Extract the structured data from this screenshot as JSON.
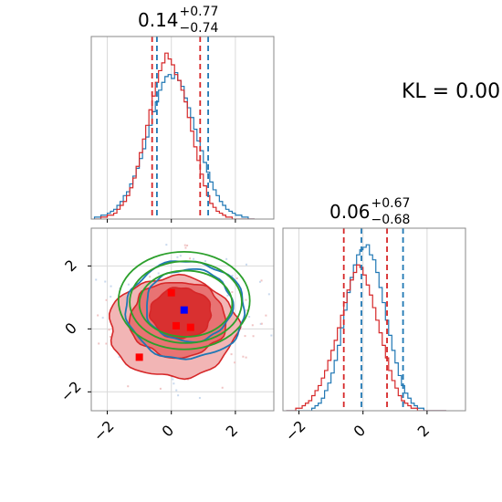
{
  "chart_data": [
    {
      "type": "step-histogram",
      "panel": "x-marginal",
      "title_main": "0.14",
      "title_sup": "+0.77",
      "title_sub": "−0.74",
      "xlim": [
        -2.5,
        3.2
      ],
      "ticks": [
        -2,
        0,
        2
      ],
      "grid": true,
      "bins": {
        "start": -2.4,
        "step": 0.1,
        "count": 50
      },
      "series": [
        {
          "color": "#1f77b4",
          "counts": [
            1,
            1,
            2,
            2,
            3,
            4,
            5,
            7,
            9,
            12,
            14,
            18,
            22,
            26,
            31,
            36,
            42,
            48,
            55,
            60,
            66,
            70,
            73,
            74,
            72,
            75,
            71,
            68,
            62,
            57,
            52,
            46,
            40,
            35,
            29,
            24,
            19,
            15,
            12,
            9,
            7,
            5,
            4,
            3,
            2,
            2,
            1,
            1,
            0,
            0
          ],
          "quantile_lines": [
            -0.45,
            1.15
          ]
        },
        {
          "color": "#d62728",
          "counts": [
            0,
            0,
            1,
            1,
            2,
            2,
            3,
            5,
            7,
            9,
            12,
            16,
            21,
            27,
            34,
            41,
            48,
            56,
            63,
            70,
            76,
            80,
            85,
            82,
            79,
            74,
            71,
            66,
            60,
            52,
            45,
            37,
            30,
            23,
            17,
            12,
            8,
            6,
            4,
            3,
            2,
            1,
            1,
            0,
            0,
            0,
            0,
            0,
            0,
            0
          ],
          "quantile_lines": [
            -0.6,
            0.9
          ]
        }
      ]
    },
    {
      "type": "step-histogram",
      "panel": "y-marginal",
      "title_main": "0.06",
      "title_sup": "+0.67",
      "title_sub": "−0.68",
      "xlim": [
        -2.5,
        3.2
      ],
      "ticks": [
        -2,
        0,
        2
      ],
      "grid": true,
      "bins": {
        "start": -2.4,
        "step": 0.1,
        "count": 50
      },
      "series": [
        {
          "color": "#1f77b4",
          "counts": [
            0,
            0,
            0,
            0,
            0,
            0,
            0,
            0,
            1,
            2,
            3,
            5,
            8,
            11,
            15,
            20,
            26,
            33,
            40,
            47,
            53,
            58,
            62,
            64,
            65,
            66,
            62,
            60,
            55,
            49,
            43,
            36,
            30,
            24,
            19,
            14,
            10,
            7,
            5,
            3,
            2,
            1,
            1,
            0,
            0,
            0,
            0,
            0,
            0,
            0
          ],
          "quantile_lines": [
            -0.05,
            1.25
          ]
        },
        {
          "color": "#d62728",
          "counts": [
            0,
            0,
            0,
            1,
            1,
            2,
            3,
            4,
            6,
            8,
            10,
            13,
            16,
            20,
            24,
            28,
            33,
            38,
            43,
            48,
            52,
            55,
            58,
            57,
            54,
            50,
            46,
            41,
            36,
            31,
            26,
            21,
            16,
            12,
            9,
            6,
            4,
            3,
            2,
            1,
            1,
            0,
            0,
            0,
            0,
            0,
            0,
            0,
            0,
            0
          ],
          "quantile_lines": [
            -0.6,
            0.75
          ]
        }
      ]
    },
    {
      "type": "contour",
      "panel": "joint",
      "xlim": [
        -2.5,
        3.2
      ],
      "ylim": [
        -2.6,
        3.2
      ],
      "xticks": [
        -2,
        0,
        2
      ],
      "yticks": [
        -2,
        0,
        2
      ],
      "grid": true,
      "filled_contours": [
        {
          "color": "#d62728",
          "fill": "#f2b5b5",
          "cx": 0.05,
          "cy": 0.05,
          "rx": 2.0,
          "ry": 1.6
        },
        {
          "color": "#d62728",
          "fill": "#e87373",
          "cx": 0.2,
          "cy": 0.3,
          "rx": 1.5,
          "ry": 1.2
        },
        {
          "color": "#d62728",
          "fill": "#d93030",
          "cx": 0.3,
          "cy": 0.5,
          "rx": 0.95,
          "ry": 0.8
        }
      ],
      "blue_contours": [
        {
          "color": "#1f77b4",
          "cx": 0.45,
          "cy": 0.6,
          "rx": 1.85,
          "ry": 1.55
        },
        {
          "color": "#1f77b4",
          "cx": 0.55,
          "cy": 0.75,
          "rx": 1.35,
          "ry": 1.15
        }
      ],
      "green_contours": [
        {
          "color": "#2ca02c",
          "cx": 0.4,
          "cy": 0.9,
          "rx": 2.05,
          "ry": 1.55
        },
        {
          "color": "#2ca02c",
          "cx": 0.45,
          "cy": 0.85,
          "rx": 1.75,
          "ry": 1.3
        },
        {
          "color": "#2ca02c",
          "cx": 0.45,
          "cy": 0.8,
          "rx": 1.45,
          "ry": 1.05
        }
      ],
      "markers": [
        {
          "color": "#0000ff",
          "x": 0.4,
          "y": 0.6
        },
        {
          "color": "#ff0000",
          "x": 0.0,
          "y": 1.15
        },
        {
          "color": "#ff0000",
          "x": 0.15,
          "y": 0.1
        },
        {
          "color": "#ff0000",
          "x": 0.6,
          "y": 0.05
        },
        {
          "color": "#ff0000",
          "x": -1.0,
          "y": -0.9
        }
      ]
    }
  ],
  "kl_text": "KL = 0.00"
}
